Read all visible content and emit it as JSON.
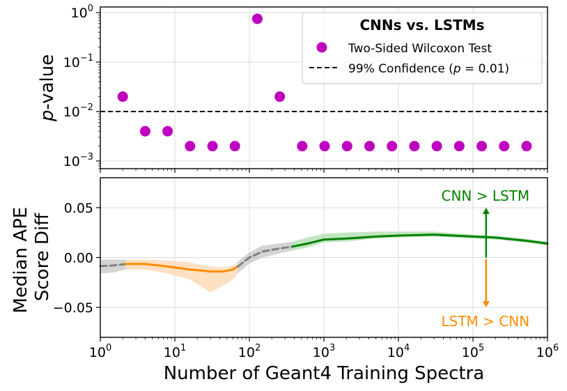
{
  "chart_data": [
    {
      "type": "scatter",
      "ylabel_italic": "p",
      "ylabel_rest": "-value",
      "yscale": "log",
      "ylim": [
        0.0007,
        1.3
      ],
      "xscale": "log",
      "xlim": [
        1,
        1000000
      ],
      "grid": true,
      "y_ticks": [
        {
          "value": 1,
          "base": "10",
          "exp": "0"
        },
        {
          "value": 0.1,
          "base": "10",
          "exp": "−1"
        },
        {
          "value": 0.01,
          "base": "10",
          "exp": "−2"
        },
        {
          "value": 0.001,
          "base": "10",
          "exp": "−3"
        }
      ],
      "legend": {
        "placement": "top-right",
        "title": "CNNs vs. LSTMs",
        "scatter_label": "Two-Sided Wilcoxon Test",
        "line_label_prefix": "99% Confidence (",
        "line_label_p": "p",
        "line_label_suffix": " = 0.01)"
      },
      "series": [
        {
          "name": "Two-Sided Wilcoxon Test",
          "color": "#bf00bf",
          "x": [
            2,
            4,
            8,
            16,
            32,
            64,
            128,
            256,
            512,
            1024,
            2048,
            4096,
            8192,
            16384,
            32768,
            65536,
            131072,
            262144,
            524288
          ],
          "y": [
            0.02,
            0.004,
            0.004,
            0.002,
            0.002,
            0.002,
            0.75,
            0.02,
            0.002,
            0.002,
            0.002,
            0.002,
            0.002,
            0.002,
            0.002,
            0.002,
            0.002,
            0.002,
            0.002
          ]
        }
      ],
      "hline": {
        "y": 0.01,
        "color": "#000000",
        "style": "dashed"
      }
    },
    {
      "type": "line",
      "ylabel_line1": "Median APE",
      "ylabel_line2": "Score Diff",
      "xlabel": "Number of Geant4 Training Spectra",
      "xscale": "log",
      "xlim": [
        1,
        1000000
      ],
      "ylim": [
        -0.08,
        0.08
      ],
      "grid": true,
      "x_ticks": [
        {
          "value": 1,
          "base": "10",
          "exp": "0"
        },
        {
          "value": 10,
          "base": "10",
          "exp": "1"
        },
        {
          "value": 100,
          "base": "10",
          "exp": "2"
        },
        {
          "value": 1000,
          "base": "10",
          "exp": "3"
        },
        {
          "value": 10000,
          "base": "10",
          "exp": "4"
        },
        {
          "value": 100000,
          "base": "10",
          "exp": "5"
        },
        {
          "value": 1000000,
          "base": "10",
          "exp": "6"
        }
      ],
      "y_ticks": [
        {
          "value": 0.05,
          "label": "0.05"
        },
        {
          "value": 0,
          "label": "0.00"
        },
        {
          "value": -0.05,
          "label": "−0.05"
        }
      ],
      "colors": {
        "cnn_better": "#008000",
        "lstm_better": "#ff8c00",
        "uncertain": "#808080"
      },
      "segments": [
        {
          "role": "uncertain",
          "style": "dashed",
          "x": [
            1,
            1.5,
            2.2
          ],
          "y": [
            -0.0085,
            -0.008,
            -0.0065
          ],
          "lo": [
            -0.016,
            -0.015,
            -0.012
          ],
          "hi": [
            -0.002,
            -0.002,
            -0.002
          ]
        },
        {
          "role": "lstm_better",
          "style": "solid",
          "x": [
            2.2,
            4,
            8,
            16,
            30,
            45,
            60,
            70
          ],
          "y": [
            -0.0065,
            -0.0065,
            -0.009,
            -0.012,
            -0.014,
            -0.014,
            -0.012,
            -0.009
          ],
          "lo": [
            -0.012,
            -0.012,
            -0.016,
            -0.022,
            -0.035,
            -0.028,
            -0.022,
            -0.016
          ],
          "hi": [
            -0.002,
            -0.002,
            -0.003,
            -0.005,
            -0.009,
            -0.01,
            -0.008,
            -0.004
          ]
        },
        {
          "role": "uncertain",
          "style": "dashed",
          "x": [
            70,
            100,
            150,
            250,
            380
          ],
          "y": [
            -0.009,
            0.0,
            0.006,
            0.009,
            0.011
          ],
          "lo": [
            -0.016,
            -0.006,
            0.0,
            0.004,
            0.007
          ],
          "hi": [
            -0.004,
            0.005,
            0.012,
            0.014,
            0.016
          ]
        },
        {
          "role": "cnn_better",
          "style": "solid",
          "x": [
            380,
            600,
            1000,
            2000,
            5000,
            10000,
            30000,
            100000,
            200000,
            500000,
            1000000
          ],
          "y": [
            0.011,
            0.014,
            0.018,
            0.019,
            0.021,
            0.022,
            0.023,
            0.021,
            0.02,
            0.017,
            0.014
          ],
          "lo": [
            0.007,
            0.01,
            0.015,
            0.016,
            0.019,
            0.02,
            0.021,
            0.019,
            0.018,
            0.015,
            0.012
          ],
          "hi": [
            0.016,
            0.02,
            0.024,
            0.025,
            0.026,
            0.026,
            0.026,
            0.023,
            0.022,
            0.019,
            0.016
          ]
        }
      ],
      "annotations": {
        "arrow_x": 150000,
        "up_label": "CNN > LSTM",
        "up_to": 0.05,
        "down_label": "LSTM > CNN",
        "down_to": -0.05
      }
    }
  ]
}
